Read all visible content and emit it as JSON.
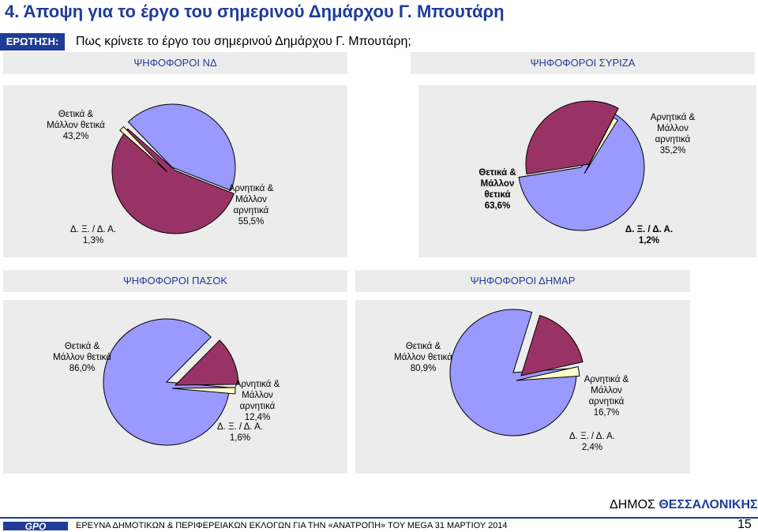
{
  "page": {
    "title": "4.  Άποψη για το έργο του σημερινού Δημάρχου Γ. Μπουτάρη",
    "question_label": "ΕΡΩΤΗΣΗ:",
    "question_text": "Πως κρίνετε το έργο του σημερινού Δημάρχου Γ. Μπουτάρη;",
    "brand_prefix": "ΔΗΜΟΣ ",
    "brand_name": "ΘΕΣΣΑΛΟΝΙΚΗΣ",
    "logo_text": "GPO",
    "footer_text": "ΕΡΕΥΝΑ ΔΗΜΟΤΙΚΩΝ & ΠΕΡΙΦΕΡΕΙΑΚΩΝ ΕΚΛΟΓΩΝ ΓΙΑ ΤΗΝ «ΑΝΑΤΡΟΠΗ» ΤΟΥ MEGA 31 ΜΑΡΤΙΟΥ 2014",
    "page_number": "15"
  },
  "colors": {
    "positive": "#9999ff",
    "negative": "#993366",
    "dk": "#ffffcc",
    "accent": "#1f3c99"
  },
  "chart_data": [
    {
      "type": "pie",
      "title": "ΨΗΦΟΦΟΡΟΙ ΝΔ",
      "slices": [
        {
          "label": "Θετικά & Μάλλον θετικά",
          "value": 43.2,
          "text": [
            "Θετικά &",
            "Μάλλον θετικά",
            "43,2%"
          ]
        },
        {
          "label": "Αρνητικά & Μάλλον αρνητικά",
          "value": 55.5,
          "text": [
            "Αρνητικά &",
            "Μάλλον",
            "αρνητικά",
            "55,5%"
          ]
        },
        {
          "label": "Δ. Ξ. / Δ. Α.",
          "value": 1.3,
          "text": [
            "Δ. Ξ. / Δ. Α.",
            "1,3%"
          ]
        }
      ]
    },
    {
      "type": "pie",
      "title": "ΨΗΦΟΦΟΡΟΙ ΣΥΡΙΖΑ",
      "slices": [
        {
          "label": "Θετικά & Μάλλον θετικά",
          "value": 63.6,
          "text": [
            "Θετικά &",
            "Μάλλον",
            "θετικά",
            "63,6%"
          ]
        },
        {
          "label": "Αρνητικά & Μάλλον αρνητικά",
          "value": 35.2,
          "text": [
            "Αρνητικά &",
            "Μάλλον",
            "αρνητικά",
            "35,2%"
          ]
        },
        {
          "label": "Δ. Ξ. / Δ. Α.",
          "value": 1.2,
          "text": [
            "Δ. Ξ. / Δ. Α.",
            "1,2%"
          ]
        }
      ]
    },
    {
      "type": "pie",
      "title": "ΨΗΦΟΦΟΡΟΙ ΠΑΣΟΚ",
      "slices": [
        {
          "label": "Θετικά & Μάλλον θετικά",
          "value": 86.0,
          "text": [
            "Θετικά &",
            "Μάλλον θετικά",
            "86,0%"
          ]
        },
        {
          "label": "Αρνητικά & Μάλλον αρνητικά",
          "value": 12.4,
          "text": [
            "Αρνητικά &",
            "Μάλλον",
            "αρνητικά",
            "12,4%"
          ]
        },
        {
          "label": "Δ. Ξ. / Δ. Α.",
          "value": 1.6,
          "text": [
            "Δ. Ξ. / Δ. Α.",
            "1,6%"
          ]
        }
      ]
    },
    {
      "type": "pie",
      "title": "ΨΗΦΟΦΟΡΟΙ ΔΗΜΑΡ",
      "slices": [
        {
          "label": "Θετικά & Μάλλον θετικά",
          "value": 80.9,
          "text": [
            "Θετικά &",
            "Μάλλον θετικά",
            "80,9%"
          ]
        },
        {
          "label": "Αρνητικά & Μάλλον αρνητικά",
          "value": 16.7,
          "text": [
            "Αρνητικά &",
            "Μάλλον",
            "αρνητικά",
            "16,7%"
          ]
        },
        {
          "label": "Δ. Ξ. / Δ. Α.",
          "value": 2.4,
          "text": [
            "Δ. Ξ. / Δ. Α.",
            "2,4%"
          ]
        }
      ]
    }
  ]
}
